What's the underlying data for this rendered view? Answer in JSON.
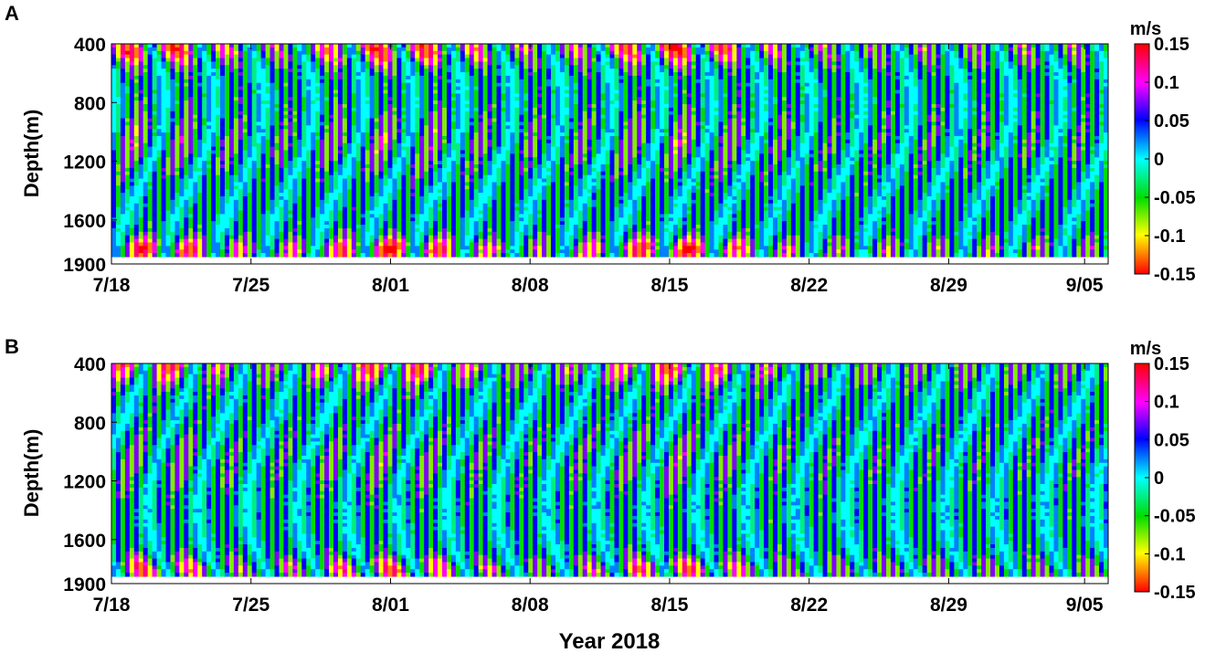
{
  "chart_data": [
    {
      "panel_label": "A",
      "type": "heatmap",
      "title": "",
      "xlabel": "",
      "ylabel": "Depth(m)",
      "x_ticks": [
        "7/18",
        "7/25",
        "8/01",
        "8/08",
        "8/15",
        "8/22",
        "8/29",
        "9/05"
      ],
      "x_range": [
        "2018-07-18",
        "2018-09-06"
      ],
      "y_ticks": [
        400,
        800,
        1200,
        1600,
        1900
      ],
      "ylim": [
        400,
        1900
      ],
      "y_reversed": true,
      "data_depth_range": [
        400,
        1850
      ],
      "colorbar": {
        "unit": "m/s",
        "ticks": [
          "0.15",
          "0.1",
          "0.05",
          "0",
          "-0.05",
          "-0.1",
          "-0.15"
        ],
        "range": [
          -0.15,
          0.15
        ]
      },
      "colormap": [
        "#ff0000",
        "#ffff00",
        "#00dd00",
        "#00ffff",
        "#0000ff",
        "#ff00ff",
        "#ff0000"
      ],
      "description_values": "Alternating bands between about -0.05 and 0.05 m/s; strongest |u| up to about 0.12-0.15 m/s near 400 m and 1700-1850 m around 7/18-7/22, 7/30-8/05 and 8/14-8/19"
    },
    {
      "panel_label": "B",
      "type": "heatmap",
      "title": "",
      "xlabel": "Year 2018",
      "ylabel": "Depth(m)",
      "x_ticks": [
        "7/18",
        "7/25",
        "8/01",
        "8/08",
        "8/15",
        "8/22",
        "8/29",
        "9/05"
      ],
      "x_range": [
        "2018-07-18",
        "2018-09-06"
      ],
      "y_ticks": [
        400,
        800,
        1200,
        1600,
        1900
      ],
      "ylim": [
        400,
        1900
      ],
      "y_reversed": true,
      "data_depth_range": [
        400,
        1850
      ],
      "colorbar": {
        "unit": "m/s",
        "ticks": [
          "0.15",
          "0.1",
          "0.05",
          "0",
          "-0.05",
          "-0.1",
          "-0.15"
        ],
        "range": [
          -0.15,
          0.15
        ]
      },
      "colormap": [
        "#ff0000",
        "#ffff00",
        "#00dd00",
        "#00ffff",
        "#0000ff",
        "#ff00ff",
        "#ff0000"
      ],
      "description_values": "Weaker field, mostly between -0.05 and 0.05 m/s; stronger values near 1700-1850 m around 7/18-7/22, 7/30-8/05 and 8/15-8/19"
    }
  ]
}
